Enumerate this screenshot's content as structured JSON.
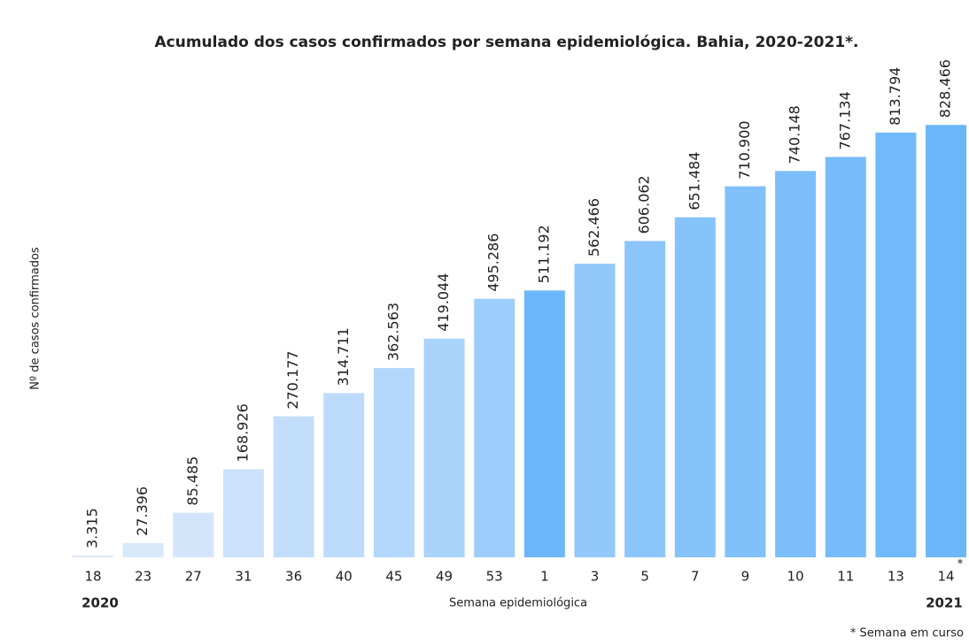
{
  "chart_data": {
    "type": "bar",
    "title": "Acumulado dos casos confirmados por semana epidemiológica. Bahia, 2020-2021*.",
    "y_label": "Nº de casos confirmados",
    "x_label": "Semana epidemiológica",
    "annotations": [
      "2020",
      "2021",
      "*",
      "* Semana em curso"
    ],
    "categories": [
      "18",
      "23",
      "27",
      "31",
      "36",
      "40",
      "45",
      "49",
      "53",
      "1",
      "3",
      "5",
      "7",
      "9",
      "10",
      "11",
      "13",
      "14"
    ],
    "values": [
      3315,
      27396,
      85485,
      168926,
      270177,
      314711,
      362563,
      419044,
      495286,
      511192,
      562466,
      606062,
      651484,
      710900,
      740148,
      767134,
      813794,
      828466
    ],
    "value_labels": [
      "3.315",
      "27.396",
      "85.485",
      "168.926",
      "270.177",
      "314.711",
      "362.563",
      "419.044",
      "495.286",
      "511.192",
      "562.466",
      "606.062",
      "651.484",
      "710.900",
      "740.148",
      "767.134",
      "813.794",
      "828.466"
    ],
    "colors": [
      "#dce9fb",
      "#d8e8fb",
      "#d3e5fb",
      "#cce2fb",
      "#c3defb",
      "#bcdbfb",
      "#b3d7fb",
      "#aad3fb",
      "#9dcdfa",
      "#6cb6fa",
      "#92c8fa",
      "#8cc5fa",
      "#86c3fa",
      "#80c0fa",
      "#7bbefa",
      "#76bbfa",
      "#70b9fa",
      "#6cb6fa"
    ],
    "ylim": [
      0,
      900000
    ]
  }
}
